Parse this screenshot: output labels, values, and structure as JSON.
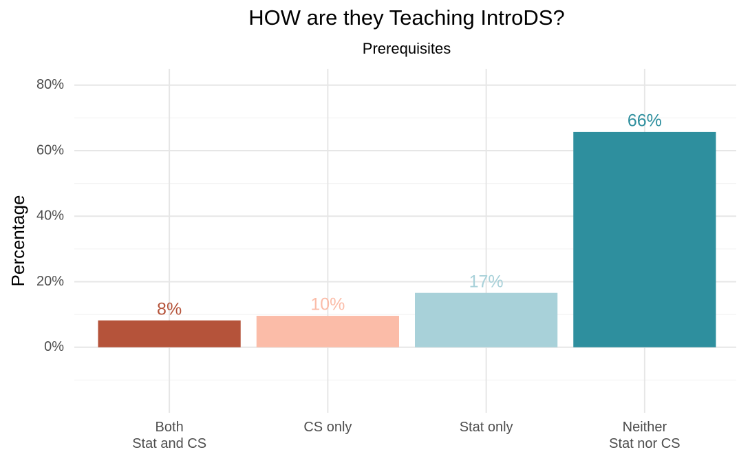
{
  "chart_data": {
    "type": "bar",
    "title": "HOW are they Teaching IntroDS?",
    "subtitle": "Prerequisites",
    "y_label": "Percentage",
    "categories": [
      "Both\nStat and CS",
      "CS only",
      "Stat only",
      "Neither\nStat nor CS"
    ],
    "values": [
      8.2,
      9.6,
      16.6,
      65.7
    ],
    "value_labels": [
      "8%",
      "10%",
      "17%",
      "66%"
    ],
    "colors": [
      "#b5533a",
      "#fbbca8",
      "#a8d1d9",
      "#2e8f9e"
    ],
    "ylim": [
      -20,
      85
    ],
    "yticks": [
      {
        "value": 0,
        "label": "0%"
      },
      {
        "value": 20,
        "label": "20%"
      },
      {
        "value": 40,
        "label": "40%"
      },
      {
        "value": 60,
        "label": "60%"
      },
      {
        "value": 80,
        "label": "80%"
      }
    ],
    "grid": true
  }
}
